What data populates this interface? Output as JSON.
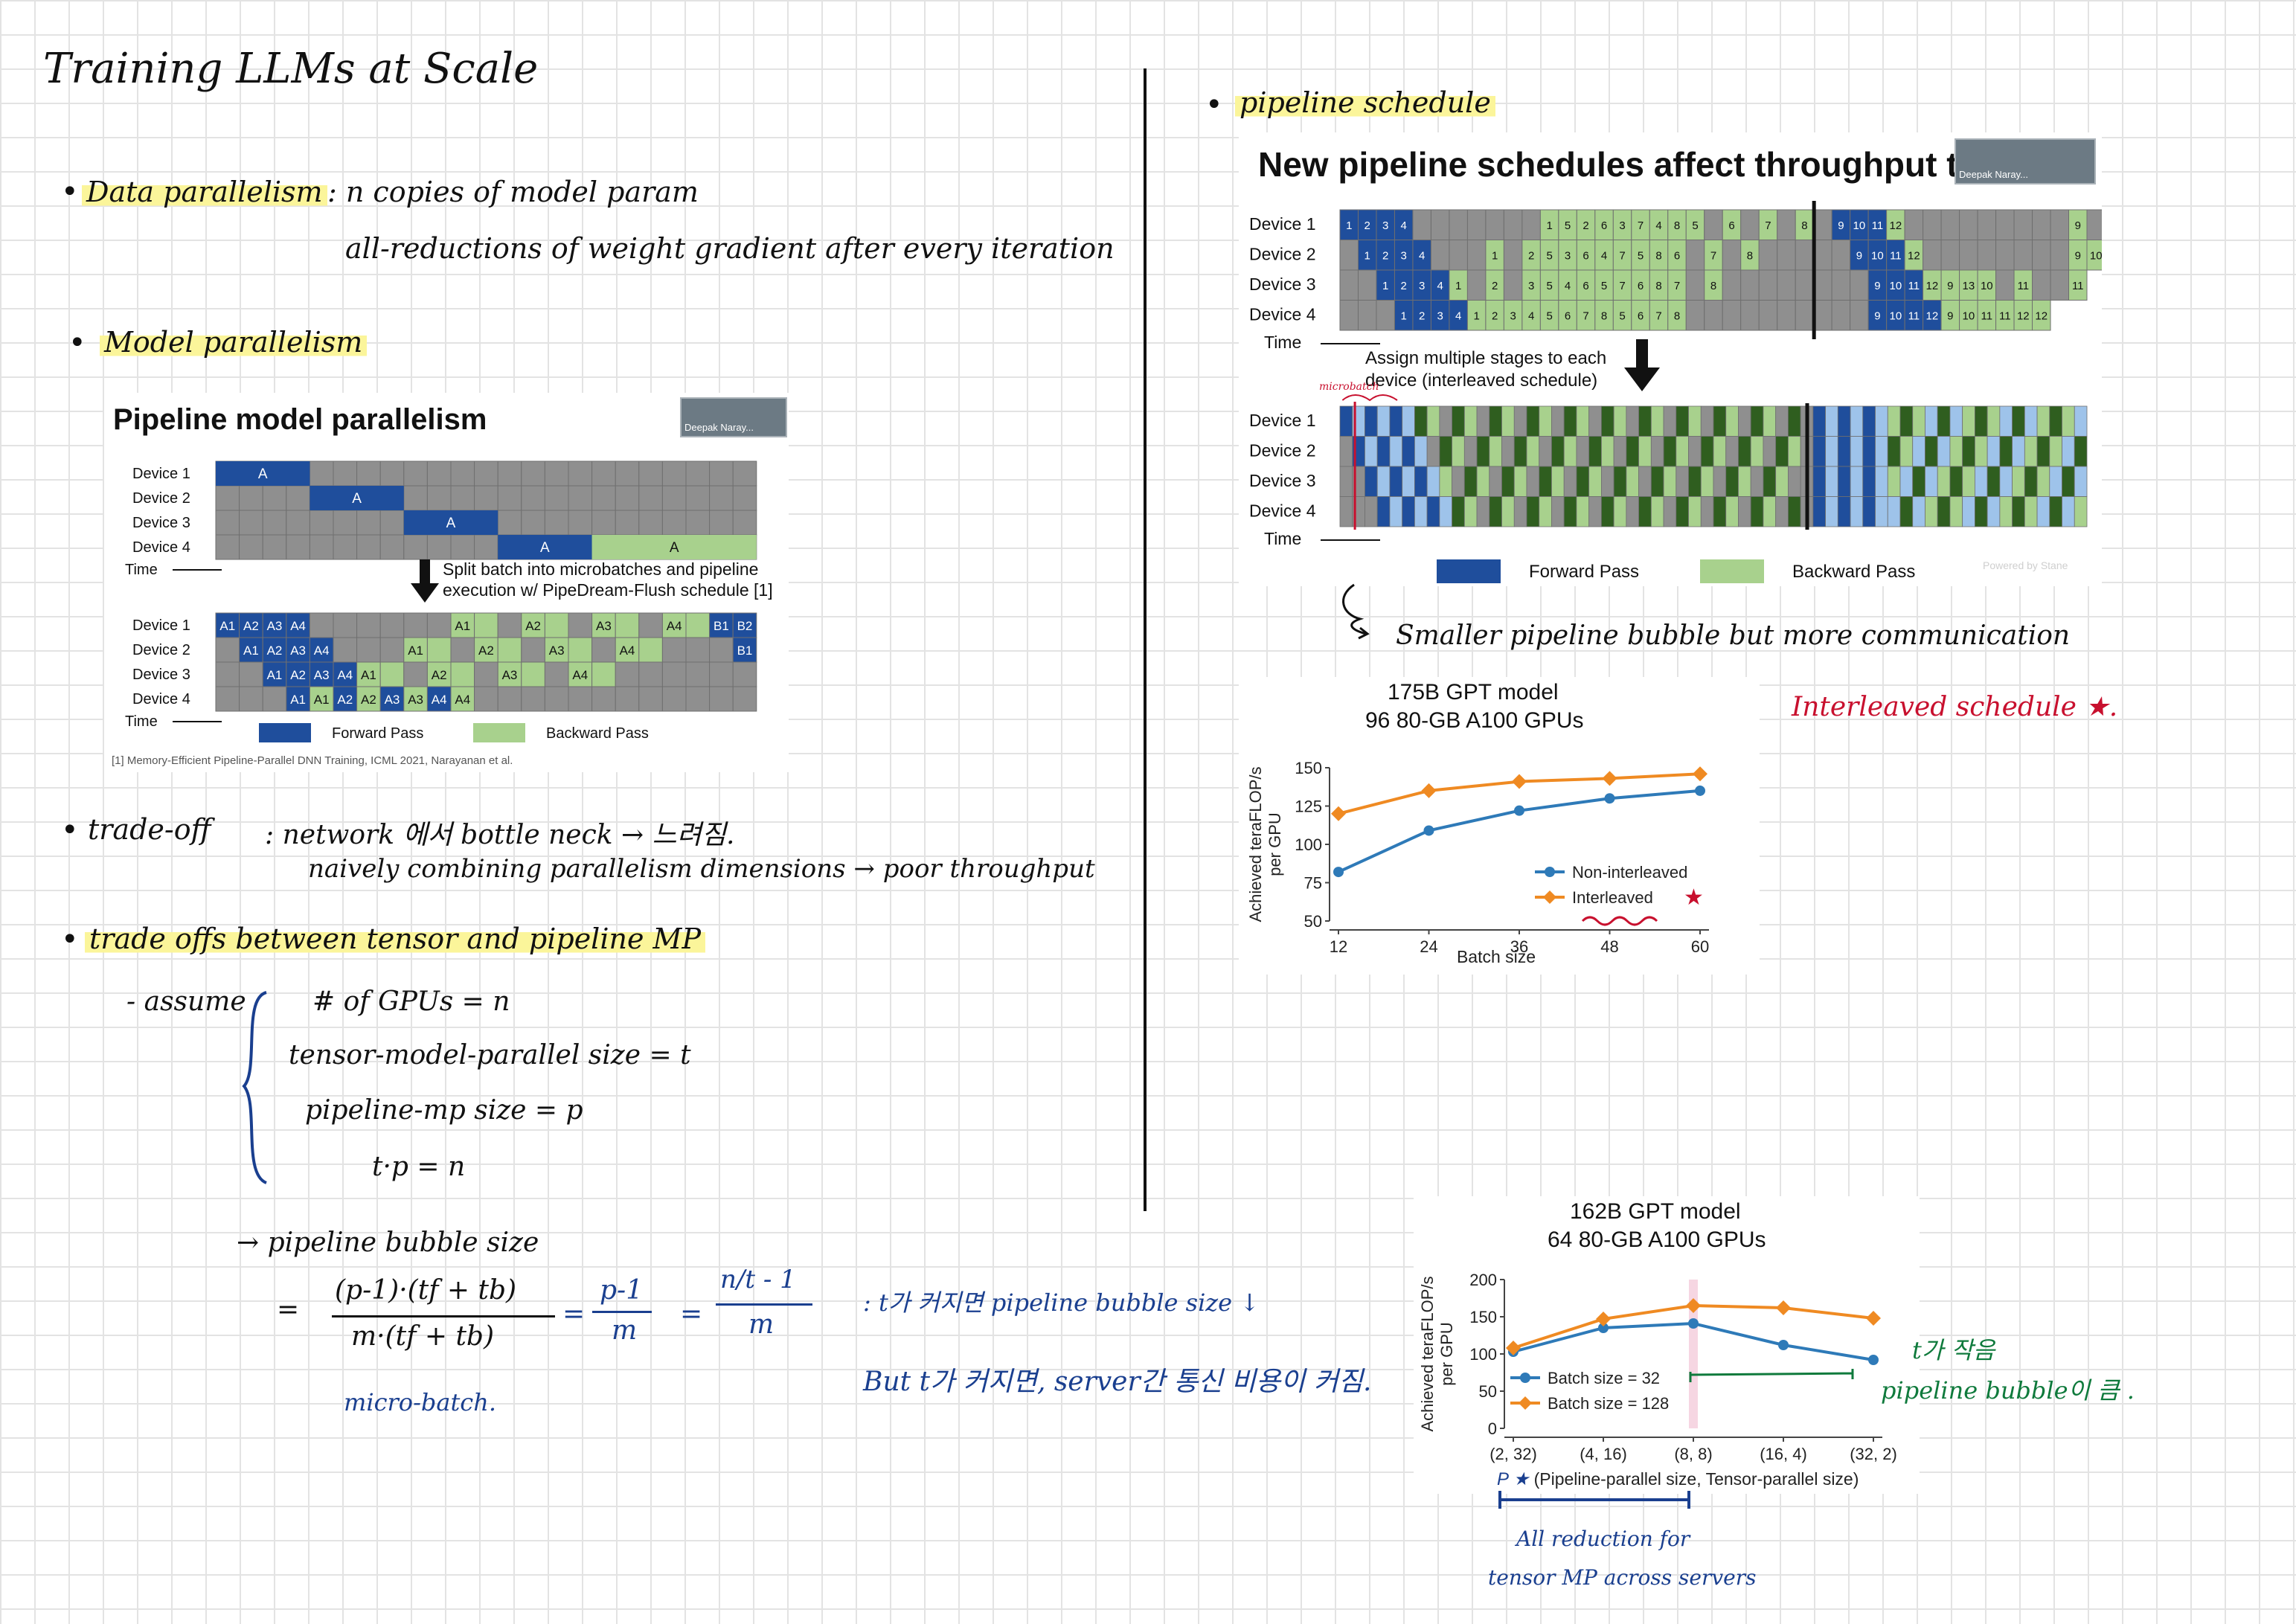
{
  "colors": {
    "forward": "#1f4e9c",
    "backward": "#a8d18d",
    "idle": "#8f8f8f",
    "highlight": "#fbf59a",
    "interleaved": "#ef8a22",
    "noninterleaved": "#2e7ab8",
    "note_blue": "#1a3f8f",
    "note_red": "#c8102e",
    "note_green": "#0f7a3c"
  },
  "title": "Training LLMs at Scale",
  "data_parallelism": {
    "label": "Data parallelism",
    "line1": ": n copies of model param",
    "line2": "all-reductions of weight gradient after every iteration"
  },
  "model_parallelism": {
    "label": "Model parallelism"
  },
  "pipeline_panel": {
    "title": "Pipeline model parallelism",
    "video_label": "Deepak Naray...",
    "devices": [
      "Device 1",
      "Device 2",
      "Device 3",
      "Device 4"
    ],
    "time": "Time",
    "top_a": "A",
    "arrow_text_1": "Split batch into microbatches and pipeline",
    "arrow_text_2": "execution w/ PipeDream-Flush schedule [1]",
    "legend_forward": "Forward Pass",
    "legend_backward": "Backward Pass",
    "citation": "[1] Memory-Efficient Pipeline-Parallel DNN Training, ICML 2021, Narayanan et al.",
    "rows": [
      [
        [
          "f",
          "A1"
        ],
        [
          "f",
          "A2"
        ],
        [
          "f",
          "A3"
        ],
        [
          "f",
          "A4"
        ],
        [
          "i",
          ""
        ],
        [
          "i",
          ""
        ],
        [
          "i",
          ""
        ],
        [
          "i",
          ""
        ],
        [
          "i",
          ""
        ],
        [
          "i",
          ""
        ],
        [
          "b",
          "A1"
        ],
        [
          "b",
          ""
        ],
        [
          "i",
          ""
        ],
        [
          "b",
          "A2"
        ],
        [
          "b",
          ""
        ],
        [
          "i",
          ""
        ],
        [
          "b",
          "A3"
        ],
        [
          "b",
          ""
        ],
        [
          "i",
          ""
        ],
        [
          "b",
          "A4"
        ],
        [
          "b",
          ""
        ],
        [
          "f",
          "B1"
        ],
        [
          "f",
          "B2"
        ]
      ],
      [
        [
          "i",
          ""
        ],
        [
          "f",
          "A1"
        ],
        [
          "f",
          "A2"
        ],
        [
          "f",
          "A3"
        ],
        [
          "f",
          "A4"
        ],
        [
          "i",
          ""
        ],
        [
          "i",
          ""
        ],
        [
          "i",
          ""
        ],
        [
          "b",
          "A1"
        ],
        [
          "b",
          ""
        ],
        [
          "i",
          ""
        ],
        [
          "b",
          "A2"
        ],
        [
          "b",
          ""
        ],
        [
          "i",
          ""
        ],
        [
          "b",
          "A3"
        ],
        [
          "b",
          ""
        ],
        [
          "i",
          ""
        ],
        [
          "b",
          "A4"
        ],
        [
          "b",
          ""
        ],
        [
          "i",
          ""
        ],
        [
          "i",
          ""
        ],
        [
          "i",
          ""
        ],
        [
          "f",
          "B1"
        ]
      ],
      [
        [
          "i",
          ""
        ],
        [
          "i",
          ""
        ],
        [
          "f",
          "A1"
        ],
        [
          "f",
          "A2"
        ],
        [
          "f",
          "A3"
        ],
        [
          "f",
          "A4"
        ],
        [
          "b",
          "A1"
        ],
        [
          "b",
          ""
        ],
        [
          "i",
          ""
        ],
        [
          "b",
          "A2"
        ],
        [
          "b",
          ""
        ],
        [
          "i",
          ""
        ],
        [
          "b",
          "A3"
        ],
        [
          "b",
          ""
        ],
        [
          "i",
          ""
        ],
        [
          "b",
          "A4"
        ],
        [
          "b",
          ""
        ],
        [
          "i",
          ""
        ],
        [
          "i",
          ""
        ],
        [
          "i",
          ""
        ],
        [
          "i",
          ""
        ],
        [
          "i",
          ""
        ],
        [
          "i",
          ""
        ]
      ],
      [
        [
          "i",
          ""
        ],
        [
          "i",
          ""
        ],
        [
          "i",
          ""
        ],
        [
          "f",
          "A1"
        ],
        [
          "b",
          "A1"
        ],
        [
          "f",
          "A2"
        ],
        [
          "b",
          "A2"
        ],
        [
          "f",
          "A3"
        ],
        [
          "b",
          "A3"
        ],
        [
          "f",
          "A4"
        ],
        [
          "b",
          "A4"
        ],
        [
          "i",
          ""
        ],
        [
          "i",
          ""
        ],
        [
          "i",
          ""
        ],
        [
          "i",
          ""
        ],
        [
          "i",
          ""
        ],
        [
          "i",
          ""
        ],
        [
          "i",
          ""
        ],
        [
          "i",
          ""
        ],
        [
          "i",
          ""
        ],
        [
          "i",
          ""
        ],
        [
          "i",
          ""
        ],
        [
          "i",
          ""
        ]
      ]
    ]
  },
  "tradeoff": {
    "label": "trade-off",
    "line1": ": network 에서 bottle neck → 느려짐.",
    "line2": "naively combining parallelism dimensions → poor throughput"
  },
  "tradeoffs_mp": {
    "label": "trade offs between tensor and pipeline MP"
  },
  "assume": {
    "label": "- assume",
    "l1": "# of GPUs = n",
    "l2": "tensor-model-parallel size = t",
    "l3": "pipeline-mp size = p",
    "l4": "t·p = n"
  },
  "bubble": {
    "label": "→ pipeline bubble size",
    "eq": "=",
    "num1": "(p-1)·(tf + tb)",
    "den1": "m·(tf + tb)",
    "num2": "p-1",
    "den2": "m",
    "num3": "n/t - 1",
    "den3": "m",
    "note1": ": t가 커지면 pipeline bubble size ↓",
    "note2": "But t가 커지면, server간 통신 비용이 커짐.",
    "micro": "micro-batch."
  },
  "pipeline_schedule": {
    "label": "pipeline schedule"
  },
  "schedule_panel": {
    "title": "New pipeline schedules affect throughput too!",
    "video_label": "Deepak Naray...",
    "devices": [
      "Device 1",
      "Device 2",
      "Device 3",
      "Device 4"
    ],
    "time": "Time",
    "arrow_text_1": "Assign multiple stages to each",
    "arrow_text_2": "device (interleaved schedule)",
    "microbatch_note": "microbatch",
    "legend_forward": "Forward Pass",
    "legend_backward": "Backward Pass",
    "powered": "Powered by Stane",
    "top_rows": [
      [
        "1",
        "2",
        "3",
        "4",
        "",
        "",
        "",
        "",
        "",
        "",
        "",
        "1",
        "5",
        "2",
        "6",
        "3",
        "7",
        "4",
        "8",
        "5",
        "",
        "6",
        "",
        "7",
        "",
        "8",
        "|",
        "9",
        "10",
        "11",
        "12",
        "",
        "",
        "",
        "",
        "",
        "",
        "",
        "",
        "",
        "9",
        "",
        "10"
      ],
      [
        "",
        "1",
        "2",
        "3",
        "4",
        "",
        "",
        "",
        "1",
        "",
        "2",
        "5",
        "3",
        "6",
        "4",
        "7",
        "5",
        "8",
        "6",
        "",
        "7",
        "",
        "8",
        "",
        "",
        "",
        "|",
        "",
        "9",
        "10",
        "11",
        "12",
        "",
        "",
        "",
        "",
        "",
        "",
        "",
        "",
        "9",
        "10"
      ],
      [
        "",
        "",
        "1",
        "2",
        "3",
        "4",
        "1",
        "",
        "2",
        "",
        "3",
        "5",
        "4",
        "6",
        "5",
        "7",
        "6",
        "8",
        "7",
        "",
        "8",
        "",
        "",
        "",
        "",
        "",
        "|",
        "",
        "",
        "9",
        "10",
        "11",
        "12",
        "9",
        "13",
        "10",
        "",
        "11",
        "",
        "",
        "11"
      ],
      [
        "",
        "",
        "",
        "1",
        "2",
        "3",
        "4",
        "1",
        "2",
        "3",
        "4",
        "5",
        "6",
        "7",
        "8",
        "5",
        "6",
        "7",
        "8",
        "",
        "",
        "",
        "",
        "",
        "",
        "",
        "|",
        "",
        "",
        "9",
        "10",
        "11",
        "12",
        "9",
        "10",
        "11",
        "11",
        "12",
        "12"
      ]
    ]
  },
  "smaller_bubble": "Smaller pipeline bubble but more communication",
  "chart1": {
    "title1": "175B GPT model",
    "title2": "96 80-GB A100 GPUs",
    "ylabel1": "Achieved teraFLOP/s",
    "ylabel2": "per GPU",
    "xlabel": "Batch size"
  },
  "interleaved_note": "Interleaved schedule ★.",
  "chart2": {
    "title1": "162B GPT model",
    "title2": "64 80-GB A100 GPUs",
    "ylabel1": "Achieved teraFLOP/s",
    "ylabel2": "per GPU",
    "xlabel": "(Pipeline-parallel size, Tensor-parallel size)",
    "p_mark": "P ★"
  },
  "t_small": {
    "l1": "t가 작음",
    "l2": "pipeline bubble이 큼 ."
  },
  "allreduce": {
    "l1": "All reduction for",
    "l2": "tensor MP across servers"
  },
  "chart_data": [
    {
      "type": "line",
      "title": "175B GPT model 96 80-GB A100 GPUs",
      "xlabel": "Batch size",
      "ylabel": "Achieved teraFLOP/s per GPU",
      "x": [
        12,
        24,
        36,
        48,
        60
      ],
      "xlim": [
        12,
        60
      ],
      "ylim": [
        50,
        150
      ],
      "yticks": [
        50,
        75,
        100,
        125,
        150
      ],
      "legend": "lower-right",
      "series": [
        {
          "name": "Non-interleaved",
          "color": "#2e7ab8",
          "values": [
            82,
            109,
            122,
            130,
            135
          ]
        },
        {
          "name": "Interleaved",
          "color": "#ef8a22",
          "values": [
            120,
            135,
            141,
            143,
            146
          ]
        }
      ]
    },
    {
      "type": "line",
      "title": "162B GPT model 64 80-GB A100 GPUs",
      "xlabel": "(Pipeline-parallel size, Tensor-parallel size)",
      "ylabel": "Achieved teraFLOP/s per GPU",
      "categories": [
        "(2, 32)",
        "(4, 16)",
        "(8, 8)",
        "(16, 4)",
        "(32, 2)"
      ],
      "ylim": [
        0,
        200
      ],
      "yticks": [
        0,
        50,
        100,
        150,
        200
      ],
      "legend": "lower-left",
      "series": [
        {
          "name": "Batch size = 32",
          "color": "#2e7ab8",
          "values": [
            103,
            135,
            141,
            112,
            92
          ]
        },
        {
          "name": "Batch size = 128",
          "color": "#ef8a22",
          "values": [
            108,
            147,
            165,
            162,
            148
          ]
        }
      ]
    }
  ]
}
